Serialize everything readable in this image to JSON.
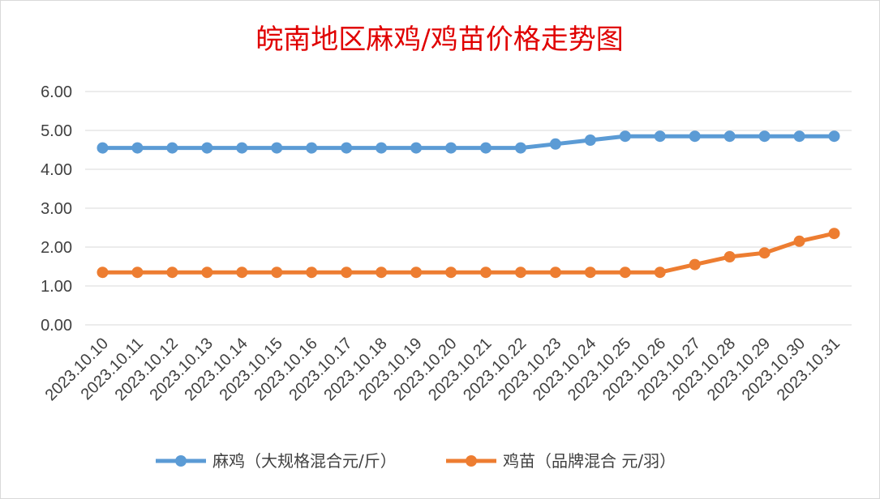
{
  "chart_data": {
    "type": "line",
    "title": "皖南地区麻鸡/鸡苗价格走势图",
    "categories": [
      "2023.10.10",
      "2023.10.11",
      "2023.10.12",
      "2023.10.13",
      "2023.10.14",
      "2023.10.15",
      "2023.10.16",
      "2023.10.17",
      "2023.10.18",
      "2023.10.19",
      "2023.10.20",
      "2023.10.21",
      "2023.10.22",
      "2023.10.23",
      "2023.10.24",
      "2023.10.25",
      "2023.10.26",
      "2023.10.27",
      "2023.10.28",
      "2023.10.29",
      "2023.10.30",
      "2023.10.31"
    ],
    "series": [
      {
        "name": "麻鸡（大规格混合元/斤）",
        "color": "#5b9bd5",
        "values": [
          4.55,
          4.55,
          4.55,
          4.55,
          4.55,
          4.55,
          4.55,
          4.55,
          4.55,
          4.55,
          4.55,
          4.55,
          4.55,
          4.65,
          4.75,
          4.85,
          4.85,
          4.85,
          4.85,
          4.85,
          4.85,
          4.85
        ]
      },
      {
        "name": "鸡苗（品牌混合 元/羽）",
        "color": "#ed7d31",
        "values": [
          1.35,
          1.35,
          1.35,
          1.35,
          1.35,
          1.35,
          1.35,
          1.35,
          1.35,
          1.35,
          1.35,
          1.35,
          1.35,
          1.35,
          1.35,
          1.35,
          1.35,
          1.55,
          1.75,
          1.85,
          2.15,
          2.35
        ]
      }
    ],
    "ytick_labels": [
      "0.00",
      "1.00",
      "2.00",
      "3.00",
      "4.00",
      "5.00",
      "6.00"
    ],
    "ylim": [
      0,
      6
    ],
    "grid": true,
    "legend_position": "bottom",
    "xlabel": "",
    "ylabel": ""
  }
}
